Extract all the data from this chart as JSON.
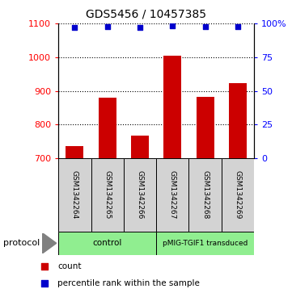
{
  "title": "GDS5456 / 10457385",
  "samples": [
    "GSM1342264",
    "GSM1342265",
    "GSM1342266",
    "GSM1342267",
    "GSM1342268",
    "GSM1342269"
  ],
  "bar_values": [
    735,
    880,
    768,
    1005,
    882,
    922
  ],
  "dot_values": [
    97,
    97.5,
    97,
    98,
    97.5,
    97.5
  ],
  "bar_color": "#cc0000",
  "dot_color": "#0000cc",
  "ylim_left": [
    700,
    1100
  ],
  "ylim_right": [
    0,
    100
  ],
  "yticks_left": [
    700,
    800,
    900,
    1000,
    1100
  ],
  "yticks_right": [
    0,
    25,
    50,
    75,
    100
  ],
  "right_tick_labels": [
    "0",
    "25",
    "50",
    "75",
    "100%"
  ],
  "groups": [
    {
      "label": "control",
      "color": "#90ee90",
      "start": 0,
      "end": 3
    },
    {
      "label": "pMIG-TGIF1 transduced",
      "color": "#90ee90",
      "start": 3,
      "end": 6
    }
  ],
  "protocol_label": "protocol",
  "legend_items": [
    {
      "label": "count",
      "color": "#cc0000"
    },
    {
      "label": "percentile rank within the sample",
      "color": "#0000cc"
    }
  ],
  "sample_box_bg": "#d3d3d3",
  "background_color": "#ffffff"
}
